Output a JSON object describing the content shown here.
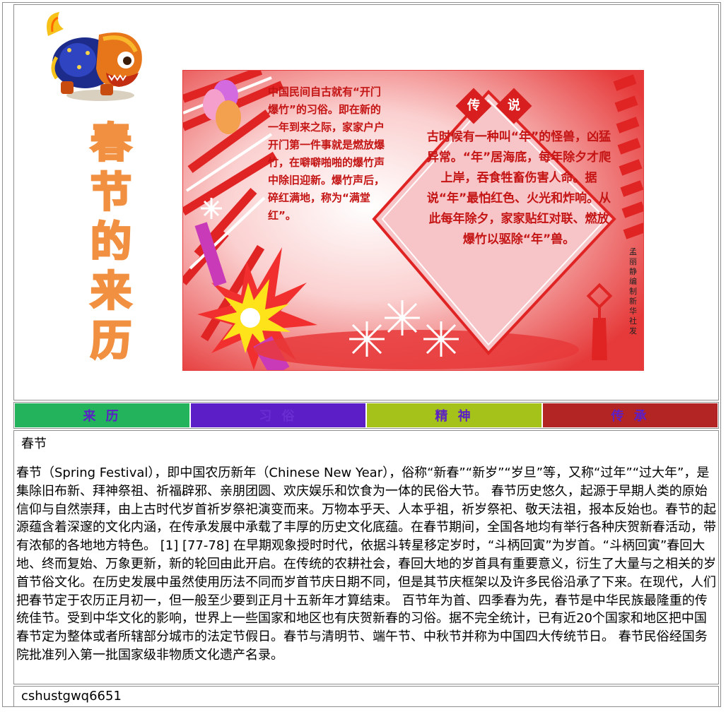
{
  "banner": {
    "title_chars": [
      "春",
      "节",
      "的",
      "来",
      "历"
    ],
    "poster": {
      "text_left": "中国民间自古就有“开门爆竹”的习俗。即在新的一年到来之际，家家户户开门第一件事就是燃放爆竹，在噼噼啪啪的爆竹声中除旧迎新。爆竹声后，碎红满地，称为“满堂红”。",
      "legend_chars": [
        "传",
        "说"
      ],
      "text_right": "古时候有一种叫“年”的怪兽，凶猛异常。“年”居海底，每年除夕才爬上岸，吞食牲畜伤害人命。据说“年”最怕红色、火光和炸响。从此每年除夕，家家贴红对联、燃放爆竹以驱除“年”兽。",
      "credit": "孟丽静编制新华社发"
    }
  },
  "nav": {
    "items": [
      {
        "label": "来 历",
        "bg": "#23b35c",
        "color": "#5b1ec7"
      },
      {
        "label": "习 俗",
        "bg": "#5b1ec7",
        "color": "#6a2dd1"
      },
      {
        "label": "精 神",
        "bg": "#a4c21a",
        "color": "#5b1ec7"
      },
      {
        "label": "传 承",
        "bg": "#b32525",
        "color": "#5b1ec7"
      }
    ]
  },
  "content": {
    "title": "春节",
    "body": "春节（Spring Festival），即中国农历新年（Chinese New Year），俗称“新春”“新岁”“岁旦”等，又称“过年”“过大年”，是集除旧布新、拜神祭祖、祈福辟邪、亲朋团圆、欢庆娱乐和饮食为一体的民俗大节。 春节历史悠久，起源于早期人类的原始信仰与自然崇拜，由上古时代岁首祈岁祭祀演变而来。万物本乎天、人本乎祖，祈岁祭祀、敬天法祖，报本反始也。春节的起源蕴含着深邃的文化内涵，在传承发展中承载了丰厚的历史文化底蕴。在春节期间，全国各地均有举行各种庆贺新春活动，带有浓郁的各地地方特色。 [1] [77-78] 在早期观象授时时代，依据斗转星移定岁时，“斗柄回寅”为岁首。“斗柄回寅”春回大地、终而复始、万象更新，新的轮回由此开启。在传统的农耕社会，春回大地的岁首具有重要意义，衍生了大量与之相关的岁首节俗文化。在历史发展中虽然使用历法不同而岁首节庆日期不同，但是其节庆框架以及许多民俗沿承了下来。在现代，人们把春节定于农历正月初一，但一般至少要到正月十五新年才算结束。 百节年为首、四季春为先，春节是中华民族最隆重的传统佳节。受到中华文化的影响，世界上一些国家和地区也有庆贺新春的习俗。据不完全统计，已有近20个国家和地区把中国春节定为整体或者所辖部分城市的法定节假日。春节与清明节、端午节、中秋节并称为中国四大传统节日。 春节民俗经国务院批准列入第一批国家级非物质文化遗产名录。"
  },
  "footer": {
    "text": "cshustgwq6651"
  }
}
